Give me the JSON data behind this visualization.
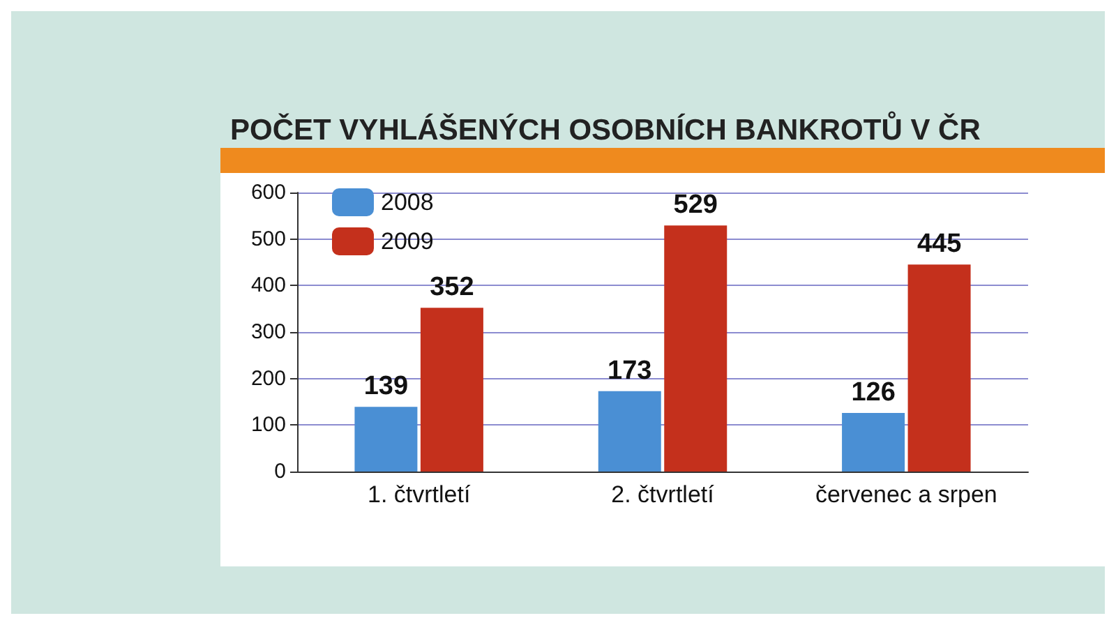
{
  "chart_data": {
    "type": "bar",
    "title": "POČET VYHLÁŠENÝCH OSOBNÍCH BANKROTŮ V ČR",
    "categories": [
      "1. čtvrtletí",
      "2. čtvrtletí",
      "červenec a srpen"
    ],
    "series": [
      {
        "name": "2008",
        "color": "#4a8fd4",
        "values": [
          139,
          173,
          126
        ]
      },
      {
        "name": "2009",
        "color": "#c4301c",
        "values": [
          352,
          529,
          445
        ]
      }
    ],
    "ylim": [
      0,
      600
    ],
    "yticks": [
      0,
      100,
      200,
      300,
      400,
      500,
      600
    ],
    "grid": "y",
    "legend": "top left",
    "data_labels": true
  }
}
